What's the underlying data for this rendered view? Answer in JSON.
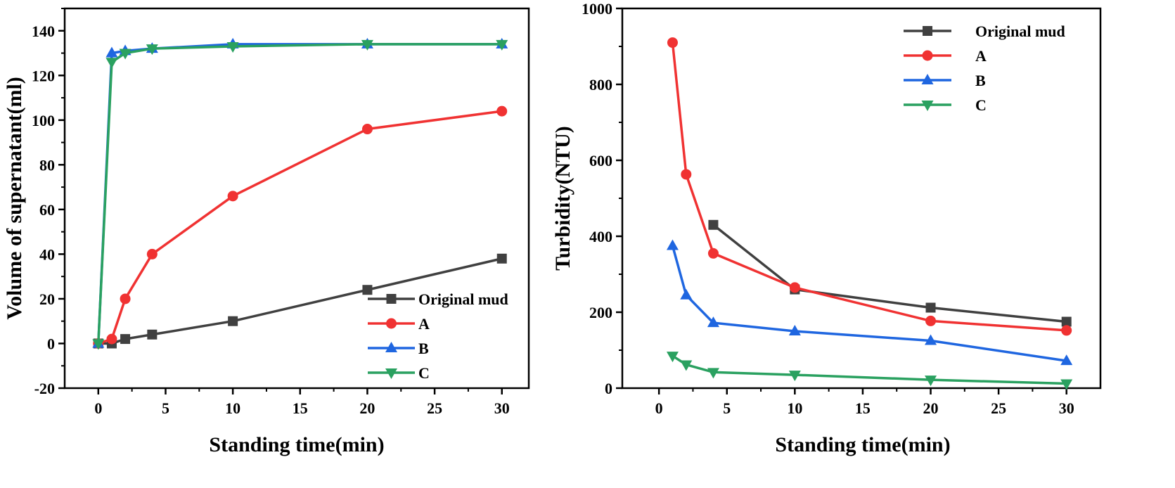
{
  "chart_data": [
    {
      "type": "line",
      "xlabel": "Standing time(min)",
      "ylabel": "Volume of supernatant(ml)",
      "xlim": [
        -2.5,
        32
      ],
      "ylim": [
        -20,
        150
      ],
      "xticks": [
        0,
        5,
        10,
        15,
        20,
        25,
        30
      ],
      "yticks": [
        -20,
        0,
        20,
        40,
        60,
        80,
        100,
        120,
        140
      ],
      "grid": false,
      "legend_position": "bottom-right",
      "series": [
        {
          "name": "Original mud",
          "color": "#404040",
          "marker": "square",
          "x": [
            0,
            1,
            2,
            4,
            10,
            20,
            30
          ],
          "y": [
            0,
            0,
            2,
            4,
            10,
            24,
            38
          ]
        },
        {
          "name": "A",
          "color": "#f03232",
          "marker": "circle",
          "x": [
            0,
            1,
            2,
            4,
            10,
            20,
            30
          ],
          "y": [
            0,
            2,
            20,
            40,
            66,
            96,
            104
          ]
        },
        {
          "name": "B",
          "color": "#1f66e0",
          "marker": "triangle-up",
          "x": [
            0,
            1,
            2,
            4,
            10,
            20,
            30
          ],
          "y": [
            0,
            130,
            131,
            132,
            134,
            134,
            134
          ]
        },
        {
          "name": "C",
          "color": "#2aa160",
          "marker": "triangle-down",
          "x": [
            0,
            1,
            2,
            4,
            10,
            20,
            30
          ],
          "y": [
            0,
            126,
            130,
            132,
            133,
            134,
            134
          ]
        }
      ]
    },
    {
      "type": "line",
      "xlabel": "Standing time(min)",
      "ylabel": "Turbidity(NTU)",
      "xlim": [
        -2.7,
        32.5
      ],
      "ylim": [
        0,
        1000
      ],
      "xticks": [
        0,
        5,
        10,
        15,
        20,
        25,
        30
      ],
      "yticks": [
        0,
        200,
        400,
        600,
        800,
        1000
      ],
      "grid": false,
      "legend_position": "top-right",
      "series": [
        {
          "name": "Original mud",
          "color": "#404040",
          "marker": "square",
          "x": [
            4,
            10,
            20,
            30
          ],
          "y": [
            430,
            260,
            212,
            175
          ]
        },
        {
          "name": "A",
          "color": "#f03232",
          "marker": "circle",
          "x": [
            1,
            2,
            4,
            10,
            20,
            30
          ],
          "y": [
            910,
            563,
            355,
            265,
            177,
            152
          ]
        },
        {
          "name": "B",
          "color": "#1f66e0",
          "marker": "triangle-up",
          "x": [
            1,
            2,
            4,
            10,
            20,
            30
          ],
          "y": [
            375,
            245,
            172,
            150,
            125,
            72
          ]
        },
        {
          "name": "C",
          "color": "#2aa160",
          "marker": "triangle-down",
          "x": [
            1,
            2,
            4,
            10,
            20,
            30
          ],
          "y": [
            85,
            62,
            42,
            35,
            22,
            12
          ]
        }
      ]
    }
  ]
}
